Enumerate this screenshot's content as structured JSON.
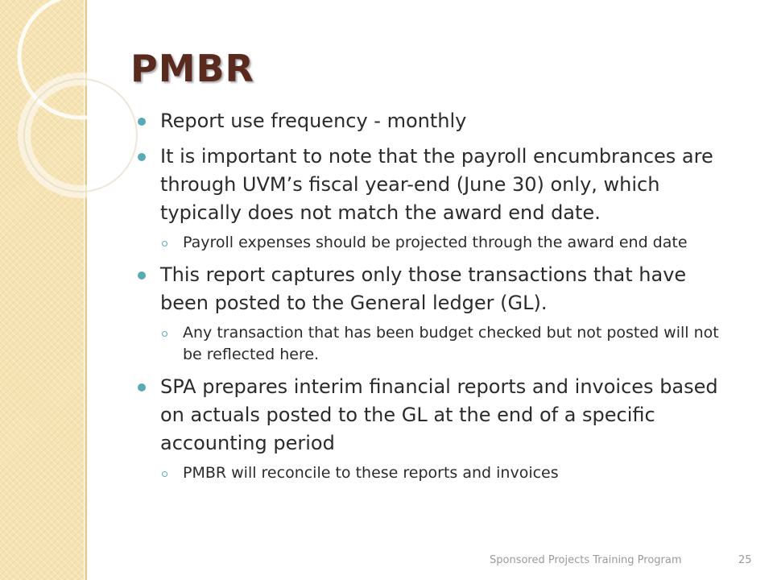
{
  "slide": {
    "title": "PMBR",
    "bullets": [
      {
        "text": "Report use frequency - monthly",
        "sub": []
      },
      {
        "text": "It is important to note that the payroll encumbrances are through UVM’s fiscal year-end (June 30) only, which typically does not match the award end date.",
        "sub": [
          "Payroll expenses should be projected through the award end date"
        ]
      },
      {
        "text": "This report captures only those transactions that have been posted to the General ledger (GL).",
        "sub": [
          "Any transaction that has been budget checked but not posted will not be reflected here."
        ]
      },
      {
        "text": "SPA prepares interim financial reports and invoices based on actuals posted to the GL at the end of a specific accounting period",
        "sub": [
          "PMBR will reconcile to these reports and invoices"
        ]
      }
    ],
    "footer": "Sponsored Projects Training Program",
    "page_number": "25"
  },
  "colors": {
    "title": "#5a2a1f",
    "bullet_accent": "#5aa9b7",
    "side_panel": "#f6e3b3",
    "footer_text": "#9a9a9a"
  }
}
